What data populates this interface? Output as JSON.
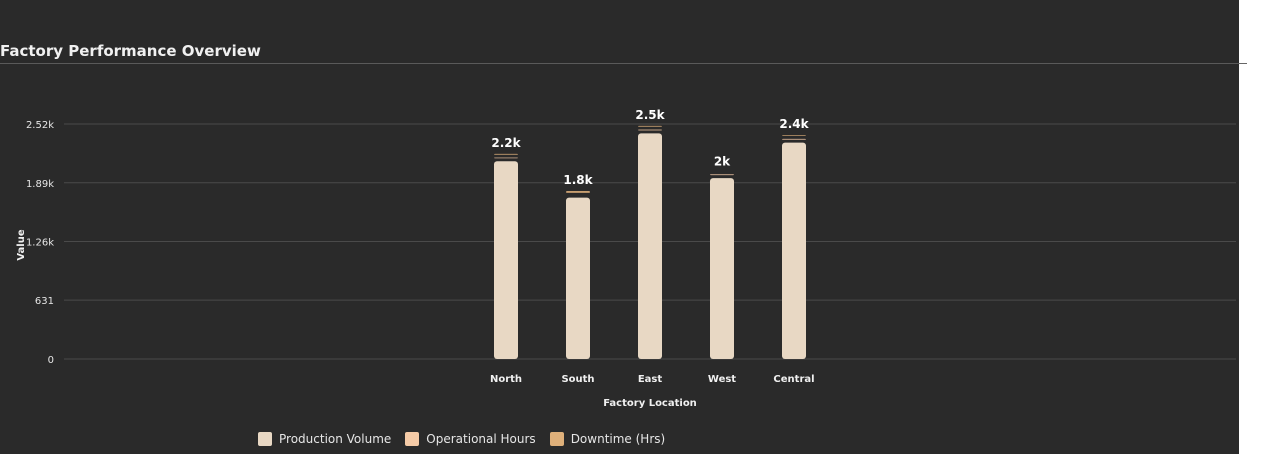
{
  "title": "Factory Performance Overview",
  "colors": {
    "background": "#2a2a2a",
    "grid": "#4a4a4a",
    "series": [
      "#e8d8c4",
      "#f5cba7",
      "#dfb07a"
    ]
  },
  "chart_data": {
    "type": "bar",
    "stacked": true,
    "categories": [
      "North",
      "South",
      "East",
      "West",
      "Central"
    ],
    "series": [
      {
        "name": "Production Volume",
        "values": [
          2120,
          1730,
          2420,
          1940,
          2320
        ]
      },
      {
        "name": "Operational Hours",
        "values": [
          40,
          20,
          40,
          40,
          40
        ]
      },
      {
        "name": "Downtime (Hrs)",
        "values": [
          40,
          50,
          40,
          20,
          40
        ]
      }
    ],
    "totals_labels": [
      "2.2k",
      "1.8k",
      "2.5k",
      "2k",
      "2.4k"
    ],
    "xlabel": "Factory Location",
    "ylabel": "Value",
    "ylim": [
      0,
      2520
    ],
    "yticks": [
      0,
      631,
      1260,
      1890,
      2520
    ],
    "ytick_labels": [
      "0",
      "631",
      "1.26k",
      "1.89k",
      "2.52k"
    ],
    "grid": true,
    "legend_position": "bottom-left"
  }
}
